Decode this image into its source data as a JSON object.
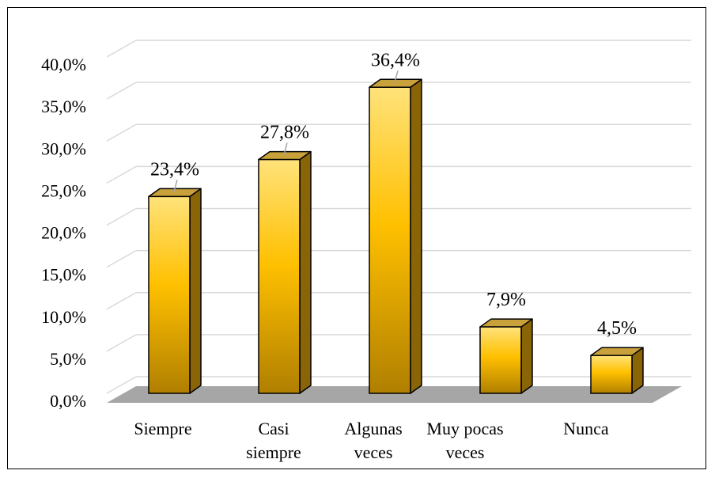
{
  "chart_data": {
    "type": "bar",
    "style": "3d-column",
    "categories": [
      [
        "Siempre"
      ],
      [
        "Casi",
        "siempre"
      ],
      [
        "Algunas",
        "veces"
      ],
      [
        "Muy pocas",
        "veces"
      ],
      [
        "Nunca"
      ]
    ],
    "values": [
      23.4,
      27.8,
      36.4,
      7.9,
      4.5
    ],
    "data_labels": [
      "23,4%",
      "27,8%",
      "36,4%",
      "7,9%",
      "4,5%"
    ],
    "y_ticks": [
      "0,0%",
      "5,0%",
      "10,0%",
      "15,0%",
      "20,0%",
      "25,0%",
      "30,0%",
      "35,0%",
      "40,0%"
    ],
    "ylim": [
      0,
      40
    ],
    "grid": true,
    "legend": "none",
    "title": "",
    "xlabel": "",
    "ylabel": "",
    "colors": {
      "bar_front_light": "#ffe27a",
      "bar_front_mid": "#ffc000",
      "bar_front_dark": "#b07f00",
      "bar_top": "#c9a13a",
      "bar_side": "#8a6508",
      "bar_outline": "#000000",
      "floor": "#a6a6a6",
      "grid": "#d9d9d9"
    }
  }
}
